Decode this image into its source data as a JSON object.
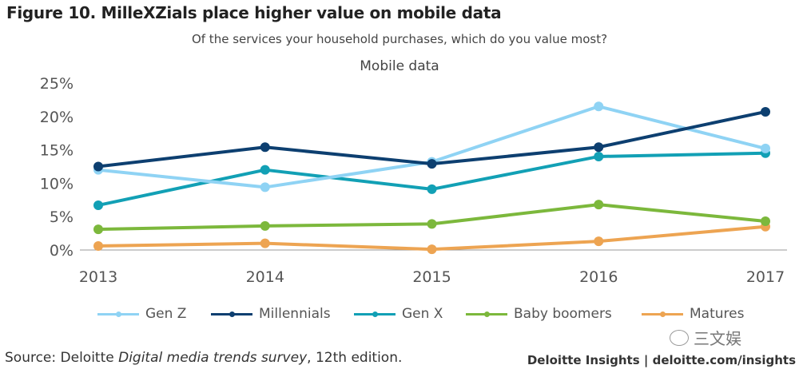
{
  "figure": {
    "title": "Figure 10. MilleXZials place higher value on mobile data",
    "subtitle": "Of the services your household purchases, which do you value most?",
    "source_prefix": "Source: Deloitte ",
    "source_italic": "Digital media trends survey",
    "source_suffix": ", 12th edition.",
    "brand": "Deloitte Insights | deloitte.com/insights",
    "watermark": "三文娱",
    "watermark_icon": "wechat-icon"
  },
  "chart_data": {
    "type": "line",
    "title": "Mobile data",
    "xlabel": "",
    "ylabel": "",
    "x": [
      "2013",
      "2014",
      "2015",
      "2016",
      "2017"
    ],
    "ylim": [
      0,
      25
    ],
    "yticks": [
      0,
      5,
      10,
      15,
      20,
      25
    ],
    "ytick_labels": [
      "0%",
      "5%",
      "10%",
      "15%",
      "20%",
      "25%"
    ],
    "grid": false,
    "legend_position": "bottom",
    "series": [
      {
        "name": "Gen Z",
        "color": "#8fd3f4",
        "values": [
          12.0,
          9.4,
          13.2,
          21.5,
          15.2
        ]
      },
      {
        "name": "Millennials",
        "color": "#0d3f70",
        "values": [
          12.5,
          15.4,
          12.9,
          15.4,
          20.7
        ]
      },
      {
        "name": "Gen X",
        "color": "#12a0b5",
        "values": [
          6.7,
          12.0,
          9.1,
          14.0,
          14.5
        ]
      },
      {
        "name": "Baby boomers",
        "color": "#7cb83c",
        "values": [
          3.1,
          3.6,
          3.9,
          6.8,
          4.3
        ]
      },
      {
        "name": "Matures",
        "color": "#eda452",
        "values": [
          0.6,
          1.0,
          0.1,
          1.3,
          3.5
        ]
      }
    ]
  }
}
